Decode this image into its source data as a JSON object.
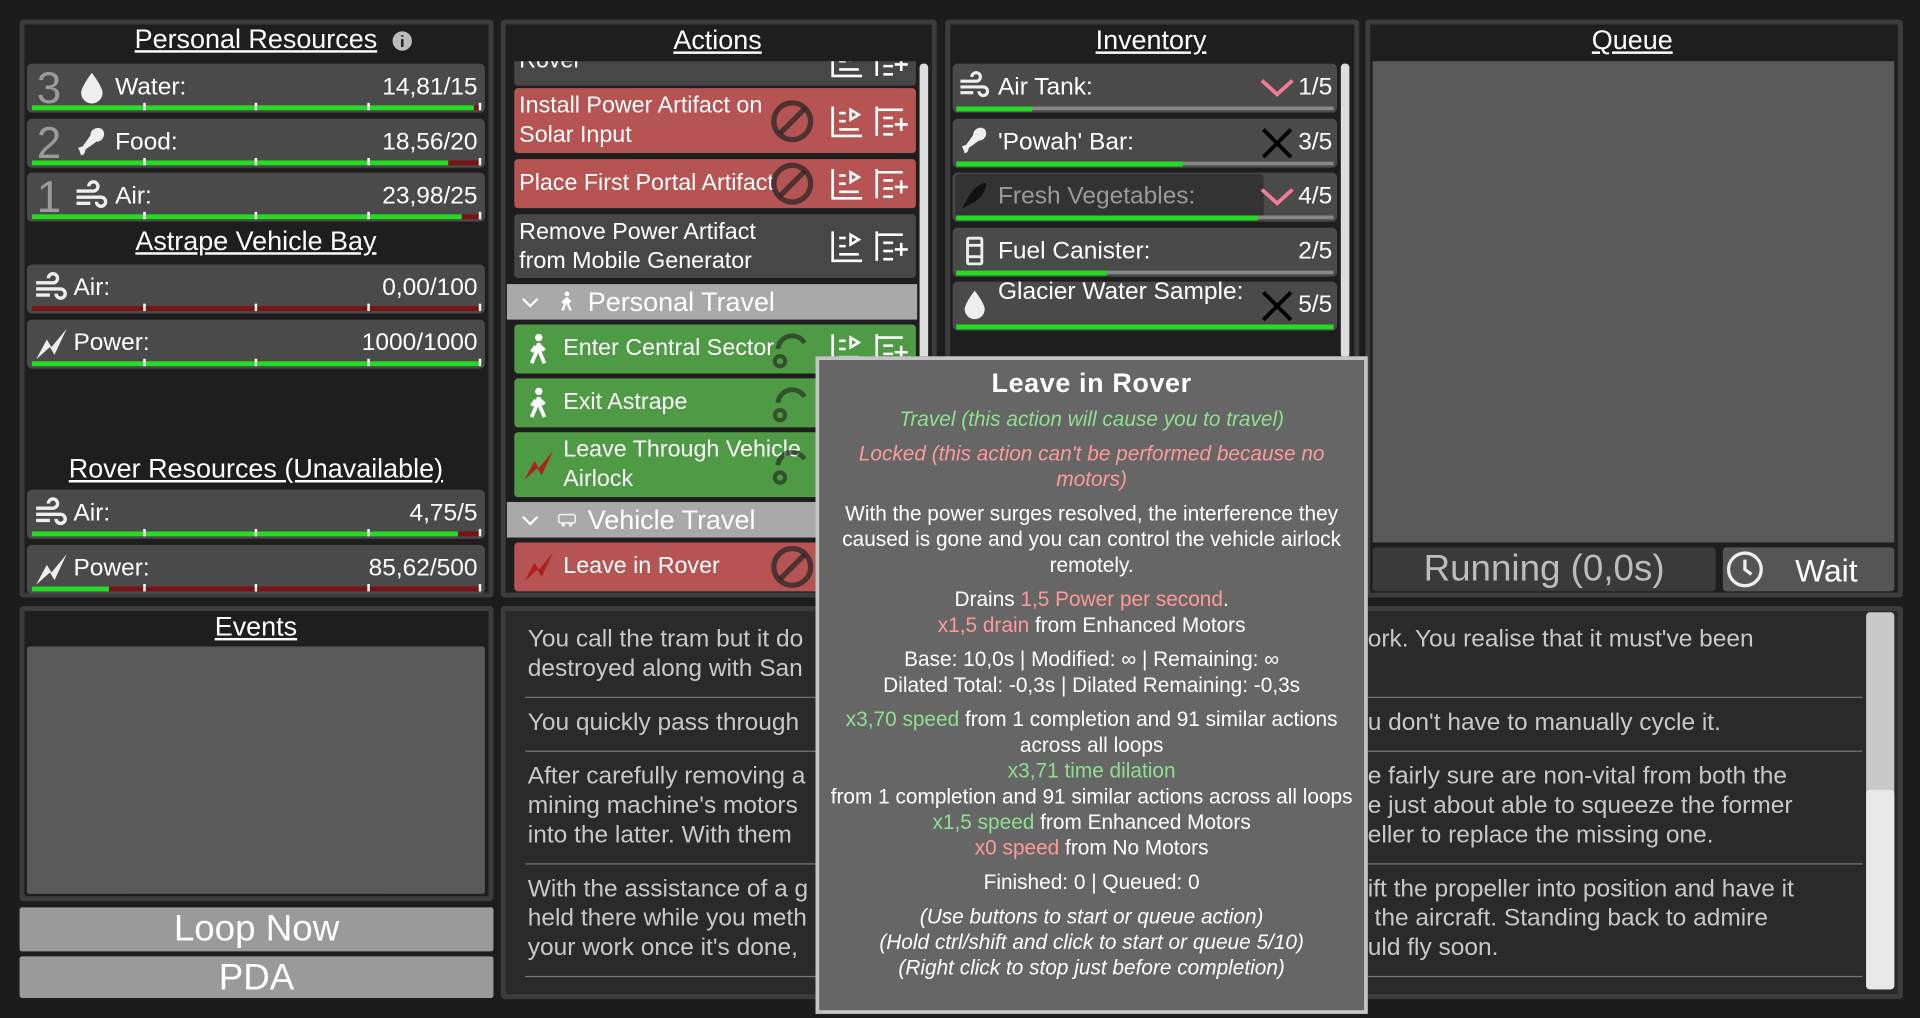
{
  "personal_resources": {
    "title": "Personal Resources",
    "items": [
      {
        "count": "3",
        "label": "Water:",
        "value": "14,81/15"
      },
      {
        "count": "2",
        "label": "Food:",
        "value": "18,56/20"
      },
      {
        "count": "1",
        "label": "Air:",
        "value": "23,98/25"
      }
    ]
  },
  "vehicle_bay": {
    "title": "Astrape Vehicle Bay",
    "items": [
      {
        "label": "Air:",
        "value": "0,00/100"
      },
      {
        "label": "Power:",
        "value": "1000/1000"
      }
    ]
  },
  "rover_resources": {
    "title": "Rover Resources (Unavailable)",
    "items": [
      {
        "label": "Air:",
        "value": "4,75/5"
      },
      {
        "label": "Power:",
        "value": "85,62/500"
      }
    ]
  },
  "actions": {
    "title": "Actions",
    "items": [
      {
        "label": "Rover",
        "state": "idle"
      },
      {
        "label": "Install Power Artifact on Solar Input",
        "state": "locked"
      },
      {
        "label": "Place First Portal Artifact",
        "state": "locked"
      },
      {
        "label": "Remove Power Artifact from Mobile Generator",
        "state": "idle"
      },
      {
        "header": "Personal Travel"
      },
      {
        "label": "Enter Central Sector",
        "state": "travel"
      },
      {
        "label": "Exit Astrape",
        "state": "travel"
      },
      {
        "label": "Leave Through Vehicle Airlock",
        "state": "travel"
      },
      {
        "header": "Vehicle Travel"
      },
      {
        "label": "Leave in Rover",
        "state": "locked"
      }
    ]
  },
  "inventory": {
    "title": "Inventory",
    "items": [
      {
        "label": "Air Tank:",
        "count": "1/5",
        "mark": "chevron"
      },
      {
        "label": "'Powah' Bar:",
        "count": "3/5",
        "mark": "cross"
      },
      {
        "label": "Fresh Vegetables:",
        "count": "4/5",
        "mark": "chevron",
        "dimmed": true
      },
      {
        "label": "Fuel Canister:",
        "count": "2/5"
      },
      {
        "label": "Glacier Water Sample:",
        "count": "5/5",
        "mark": "cross"
      }
    ]
  },
  "queue": {
    "title": "Queue",
    "status": "Running (0,0s)",
    "wait": "Wait"
  },
  "events": {
    "title": "Events"
  },
  "buttons": [
    "Loop Now",
    "PDA"
  ],
  "log": {
    "paragraphs": [
      [
        [
          "You call the tram but it do",
          "ork. You realise that it must've been"
        ],
        [
          "destroyed along with San"
        ]
      ],
      [
        [
          "You quickly pass through",
          "u don't have to manually cycle it."
        ]
      ],
      [
        [
          "After carefully removing a",
          "e fairly sure are non-vital from both the"
        ],
        [
          "mining machine's motors",
          "e just about able to squeeze the former"
        ],
        [
          "into the latter. With them",
          "eller to replace the missing one."
        ]
      ],
      [
        [
          "With the assistance of a g",
          "ift the propeller into position and have it"
        ],
        [
          "held there while you meth",
          " the aircraft. Standing back to admire"
        ],
        [
          "your work once it's done,",
          "uld fly soon."
        ]
      ]
    ]
  },
  "tooltip": {
    "title": "Leave in Rover",
    "blocks": [
      [
        [
          {
            "text": "Travel (this action will cause you to travel)",
            "color": "#8fe08f",
            "italic": true
          }
        ]
      ],
      [
        [
          {
            "text": "Locked (this action can't be performed because no motors)",
            "color": "#ff9a9a",
            "italic": true
          }
        ]
      ],
      [
        [
          {
            "text": "With the power surges resolved, the interference they caused is gone and you can control the vehicle airlock remotely."
          }
        ]
      ],
      [
        [
          {
            "text": "Drains "
          },
          {
            "text": "1,5 Power per second",
            "color": "#ff9a9a"
          },
          {
            "text": "."
          }
        ],
        [
          {
            "text": "x1,5 drain",
            "color": "#ff9a9a"
          },
          {
            "text": " from Enhanced Motors"
          }
        ]
      ],
      [
        [
          {
            "text": "Base: 10,0s | Modified: ∞ | Remaining: ∞"
          }
        ],
        [
          {
            "text": "Dilated Total: -0,3s | Dilated Remaining: -0,3s"
          }
        ]
      ],
      [
        [
          {
            "text": "x3,70 speed",
            "color": "#8fe08f"
          },
          {
            "text": " from 1 completion and 91 similar actions across all loops"
          }
        ],
        [
          {
            "text": "x3,71 time dilation",
            "color": "#8fe08f"
          }
        ],
        [
          {
            "text": "from 1 completion and 91 similar actions across all loops"
          }
        ],
        [
          {
            "text": "x1,5 speed",
            "color": "#8fe08f"
          },
          {
            "text": " from Enhanced Motors"
          }
        ],
        [
          {
            "text": "x0 speed",
            "color": "#ff9a9a"
          },
          {
            "text": " from No Motors"
          }
        ]
      ],
      [
        [
          {
            "text": "Finished: 0 | Queued: 0"
          }
        ]
      ],
      [
        [
          {
            "text": "(Use buttons to start or queue action)",
            "italic": true
          }
        ],
        [
          {
            "text": "(Hold ctrl/shift and click to start or queue 5/10)",
            "italic": true
          }
        ],
        [
          {
            "text": "(Right click to stop just before completion)",
            "italic": true
          }
        ]
      ]
    ]
  }
}
